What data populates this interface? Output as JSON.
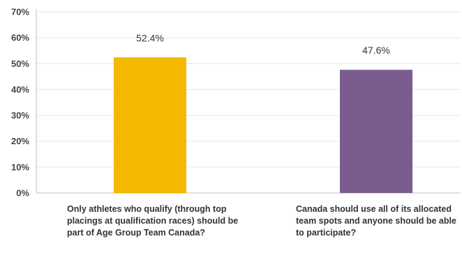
{
  "chart_data": {
    "type": "bar",
    "title": "",
    "xlabel": "",
    "ylabel": "",
    "ylim": [
      0,
      70
    ],
    "yticks": [
      0,
      10,
      20,
      30,
      40,
      50,
      60,
      70
    ],
    "ytick_labels": [
      "0%",
      "10%",
      "20%",
      "30%",
      "40%",
      "50%",
      "60%",
      "70%"
    ],
    "grid": true,
    "legend": "none",
    "categories": [
      "Only athletes who qualify (through top placings at qualification races) should be part of Age Group Team Canada?",
      "Canada should use all of its allocated team spots and anyone should be able to participate?"
    ],
    "values": [
      52.4,
      47.6
    ],
    "data_labels": [
      "52.4%",
      "47.6%"
    ],
    "colors": [
      "#f5b800",
      "#7a5c8e"
    ]
  }
}
